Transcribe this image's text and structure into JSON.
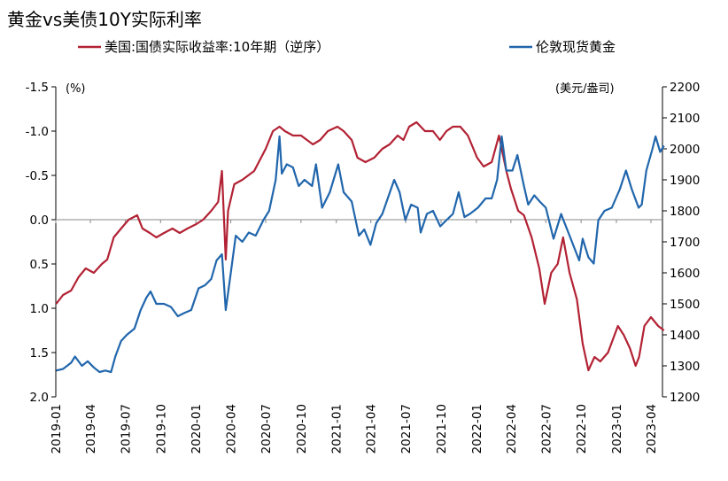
{
  "title": "黄金vs美债10Y实际利率",
  "chart_data": {
    "type": "line",
    "title": "黄金vs美债10Y实际利率",
    "legend_position": "top",
    "grid": false,
    "left_axis": {
      "unit": "(%)",
      "inverted": true,
      "range": [
        -1.5,
        2.0
      ],
      "ticks": [
        -1.5,
        -1.0,
        -0.5,
        0.0,
        0.5,
        1.0,
        1.5,
        2.0
      ],
      "tick_labels": [
        "-1.5",
        "-1.0",
        "-0.5",
        "0.0",
        "0.5",
        "1.0",
        "1.5",
        "2.0"
      ]
    },
    "right_axis": {
      "unit": "(美元/盎司)",
      "range": [
        1200,
        2200
      ],
      "ticks": [
        1200,
        1300,
        1400,
        1500,
        1600,
        1700,
        1800,
        1900,
        2000,
        2100,
        2200
      ],
      "tick_labels": [
        "1200",
        "1300",
        "1400",
        "1500",
        "1600",
        "1700",
        "1800",
        "1900",
        "2000",
        "2100",
        "2200"
      ]
    },
    "x_axis": {
      "range": [
        "2019-01",
        "2023-05"
      ],
      "ticks": [
        "2019-01",
        "2019-04",
        "2019-07",
        "2019-10",
        "2020-01",
        "2020-04",
        "2020-07",
        "2020-10",
        "2021-01",
        "2021-04",
        "2021-07",
        "2021-10",
        "2022-01",
        "2022-04",
        "2022-07",
        "2022-10",
        "2023-01",
        "2023-04"
      ]
    },
    "series": [
      {
        "name": "美国:国债实际收益率:10年期（逆序）",
        "axis": "left",
        "color": "#B22234",
        "x": [
          "2019-01-02",
          "2019-01-20",
          "2019-02-10",
          "2019-03-01",
          "2019-03-20",
          "2019-04-10",
          "2019-05-01",
          "2019-05-15",
          "2019-06-01",
          "2019-06-20",
          "2019-07-10",
          "2019-08-01",
          "2019-08-15",
          "2019-09-03",
          "2019-09-20",
          "2019-10-10",
          "2019-11-01",
          "2019-11-20",
          "2019-12-10",
          "2020-01-02",
          "2020-01-20",
          "2020-02-10",
          "2020-02-28",
          "2020-03-09",
          "2020-03-19",
          "2020-03-25",
          "2020-04-10",
          "2020-05-01",
          "2020-06-01",
          "2020-07-01",
          "2020-07-20",
          "2020-08-06",
          "2020-08-20",
          "2020-09-10",
          "2020-10-01",
          "2020-11-01",
          "2020-11-20",
          "2020-12-10",
          "2021-01-04",
          "2021-01-20",
          "2021-02-10",
          "2021-02-25",
          "2021-03-18",
          "2021-04-10",
          "2021-05-01",
          "2021-05-20",
          "2021-06-10",
          "2021-06-25",
          "2021-07-10",
          "2021-07-29",
          "2021-08-20",
          "2021-09-10",
          "2021-09-28",
          "2021-10-15",
          "2021-11-01",
          "2021-11-20",
          "2021-12-10",
          "2022-01-03",
          "2022-01-20",
          "2022-02-10",
          "2022-03-01",
          "2022-03-20",
          "2022-04-01",
          "2022-04-20",
          "2022-05-05",
          "2022-05-25",
          "2022-06-14",
          "2022-06-28",
          "2022-07-15",
          "2022-08-01",
          "2022-08-15",
          "2022-09-01",
          "2022-09-20",
          "2022-10-05",
          "2022-10-20",
          "2022-11-05",
          "2022-11-20",
          "2022-12-10",
          "2023-01-05",
          "2023-01-20",
          "2023-02-05",
          "2023-02-20",
          "2023-03-01",
          "2023-03-15",
          "2023-04-01",
          "2023-04-20",
          "2023-05-05"
        ],
        "values": [
          0.95,
          0.85,
          0.8,
          0.65,
          0.55,
          0.6,
          0.5,
          0.45,
          0.2,
          0.1,
          0.0,
          -0.05,
          0.1,
          0.15,
          0.2,
          0.15,
          0.1,
          0.15,
          0.1,
          0.05,
          0.0,
          -0.1,
          -0.2,
          -0.55,
          0.45,
          -0.1,
          -0.4,
          -0.45,
          -0.55,
          -0.8,
          -1.0,
          -1.05,
          -1.0,
          -0.95,
          -0.95,
          -0.85,
          -0.9,
          -1.0,
          -1.05,
          -1.0,
          -0.9,
          -0.7,
          -0.65,
          -0.7,
          -0.8,
          -0.85,
          -0.95,
          -0.9,
          -1.05,
          -1.1,
          -1.0,
          -1.0,
          -0.9,
          -1.0,
          -1.05,
          -1.05,
          -0.95,
          -0.7,
          -0.6,
          -0.65,
          -0.95,
          -0.55,
          -0.35,
          -0.1,
          -0.05,
          0.2,
          0.55,
          0.95,
          0.6,
          0.5,
          0.2,
          0.6,
          0.9,
          1.4,
          1.7,
          1.55,
          1.6,
          1.5,
          1.2,
          1.3,
          1.45,
          1.65,
          1.55,
          1.2,
          1.1,
          1.2,
          1.25
        ]
      },
      {
        "name": "伦敦现货黄金",
        "axis": "right",
        "color": "#2166AC",
        "x": [
          "2019-01-02",
          "2019-01-20",
          "2019-02-10",
          "2019-02-20",
          "2019-03-10",
          "2019-03-25",
          "2019-04-10",
          "2019-04-25",
          "2019-05-10",
          "2019-05-25",
          "2019-06-05",
          "2019-06-20",
          "2019-07-05",
          "2019-07-25",
          "2019-08-10",
          "2019-08-25",
          "2019-09-05",
          "2019-09-20",
          "2019-10-10",
          "2019-10-28",
          "2019-11-15",
          "2019-12-01",
          "2019-12-20",
          "2020-01-08",
          "2020-01-25",
          "2020-02-10",
          "2020-02-24",
          "2020-03-09",
          "2020-03-19",
          "2020-04-01",
          "2020-04-14",
          "2020-05-01",
          "2020-05-18",
          "2020-06-05",
          "2020-06-25",
          "2020-07-10",
          "2020-07-27",
          "2020-08-06",
          "2020-08-12",
          "2020-08-25",
          "2020-09-10",
          "2020-09-25",
          "2020-10-10",
          "2020-10-30",
          "2020-11-09",
          "2020-11-25",
          "2020-12-15",
          "2021-01-06",
          "2021-01-20",
          "2021-02-10",
          "2021-03-01",
          "2021-03-15",
          "2021-03-31",
          "2021-04-15",
          "2021-05-01",
          "2021-05-15",
          "2021-06-01",
          "2021-06-15",
          "2021-06-30",
          "2021-07-15",
          "2021-08-01",
          "2021-08-09",
          "2021-08-25",
          "2021-09-10",
          "2021-09-29",
          "2021-10-15",
          "2021-11-01",
          "2021-11-16",
          "2021-12-01",
          "2021-12-15",
          "2022-01-05",
          "2022-01-25",
          "2022-02-10",
          "2022-02-24",
          "2022-03-08",
          "2022-03-20",
          "2022-04-05",
          "2022-04-18",
          "2022-05-05",
          "2022-05-16",
          "2022-06-01",
          "2022-06-15",
          "2022-07-01",
          "2022-07-21",
          "2022-08-10",
          "2022-08-16",
          "2022-09-01",
          "2022-09-26",
          "2022-10-05",
          "2022-10-20",
          "2022-11-03",
          "2022-11-15",
          "2022-12-01",
          "2022-12-20",
          "2023-01-10",
          "2023-01-26",
          "2023-02-10",
          "2023-02-28",
          "2023-03-08",
          "2023-03-20",
          "2023-04-05",
          "2023-04-13",
          "2023-04-25",
          "2023-05-05"
        ],
        "values": [
          1285,
          1290,
          1310,
          1330,
          1300,
          1315,
          1295,
          1280,
          1285,
          1280,
          1330,
          1380,
          1400,
          1420,
          1480,
          1520,
          1540,
          1500,
          1500,
          1490,
          1460,
          1470,
          1480,
          1550,
          1560,
          1580,
          1640,
          1660,
          1480,
          1600,
          1720,
          1700,
          1730,
          1720,
          1770,
          1800,
          1900,
          2040,
          1920,
          1950,
          1940,
          1880,
          1900,
          1880,
          1950,
          1810,
          1860,
          1950,
          1860,
          1830,
          1720,
          1740,
          1690,
          1760,
          1790,
          1840,
          1900,
          1860,
          1770,
          1820,
          1810,
          1730,
          1790,
          1800,
          1750,
          1770,
          1790,
          1860,
          1780,
          1790,
          1810,
          1840,
          1840,
          1900,
          2040,
          1930,
          1930,
          1980,
          1880,
          1820,
          1850,
          1830,
          1810,
          1710,
          1790,
          1770,
          1720,
          1640,
          1710,
          1650,
          1630,
          1770,
          1800,
          1810,
          1870,
          1930,
          1870,
          1810,
          1820,
          1930,
          2000,
          2040,
          1990,
          2010
        ]
      }
    ]
  }
}
